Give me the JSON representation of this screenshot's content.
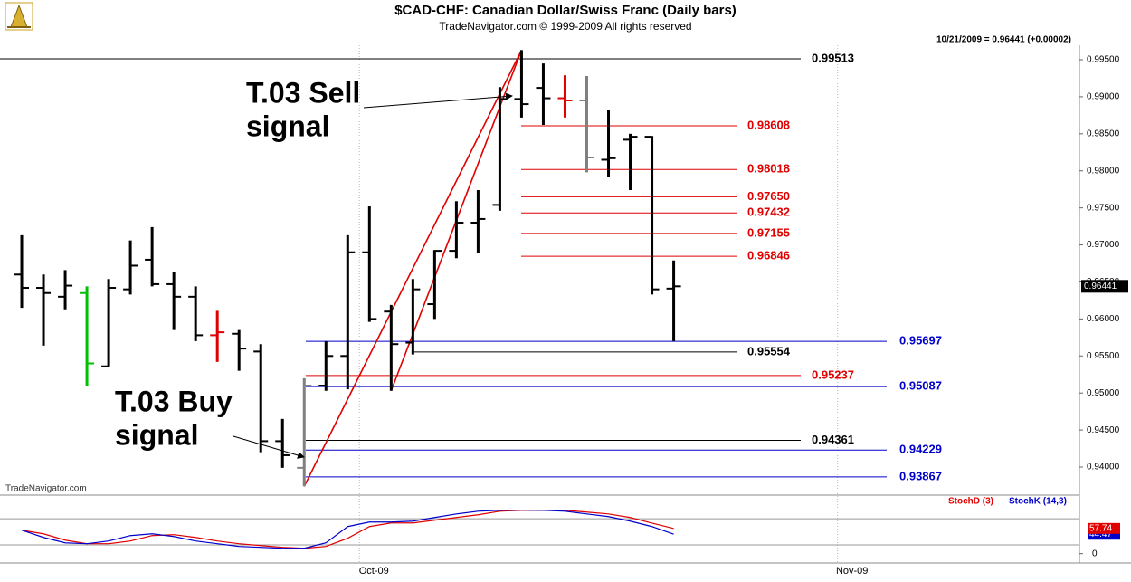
{
  "chart_data": [
    {
      "type": "ohlc",
      "title": "$CAD-CHF:  Canadian Dollar/Swiss Franc  (Daily bars)",
      "subtitle": "TradeNavigator.com © 1999-2009 All rights reserved",
      "header_note": "10/21/2009 = 0.96441 (+0.00002)",
      "watermark": "TradeNavigator.com",
      "open": [
        0.966,
        0.9642,
        0.963,
        0.9635,
        0.9536,
        0.964,
        0.968,
        0.9647,
        0.963,
        0.9578,
        0.958,
        0.9556,
        0.9435,
        0.9399,
        0.951,
        0.955,
        0.969,
        0.961,
        0.9568,
        0.962,
        0.9692,
        0.973,
        0.9754,
        0.9897,
        0.9912,
        0.9898,
        0.9895,
        0.9815,
        0.9842,
        0.9846,
        0.9641
      ],
      "high": [
        0.9713,
        0.966,
        0.9666,
        0.9644,
        0.9654,
        0.9706,
        0.9724,
        0.9664,
        0.9644,
        0.9611,
        0.9585,
        0.9566,
        0.9465,
        0.952,
        0.957,
        0.9713,
        0.9752,
        0.9619,
        0.9654,
        0.9693,
        0.9759,
        0.9774,
        0.9913,
        0.9963,
        0.9945,
        0.9929,
        0.9928,
        0.9882,
        0.985,
        0.9847,
        0.9679
      ],
      "low": [
        0.9615,
        0.9564,
        0.9613,
        0.951,
        0.9536,
        0.9633,
        0.9644,
        0.9585,
        0.957,
        0.9542,
        0.953,
        0.942,
        0.9399,
        0.9374,
        0.9503,
        0.9505,
        0.9596,
        0.9503,
        0.9552,
        0.96,
        0.9682,
        0.9689,
        0.9746,
        0.9872,
        0.9862,
        0.9872,
        0.9798,
        0.9792,
        0.9774,
        0.9633,
        0.957
      ],
      "close": [
        0.9642,
        0.9635,
        0.9645,
        0.954,
        0.9642,
        0.9672,
        0.9647,
        0.963,
        0.9578,
        0.9582,
        0.956,
        0.9435,
        0.9416,
        0.951,
        0.955,
        0.969,
        0.96,
        0.9566,
        0.964,
        0.9692,
        0.973,
        0.9735,
        0.9897,
        0.989,
        0.9898,
        0.9895,
        0.9818,
        0.9817,
        0.9846,
        0.964,
        0.96441
      ],
      "colors": [
        "#000000",
        "#000000",
        "#000000",
        "#00c000",
        "#000000",
        "#000000",
        "#000000",
        "#000000",
        "#000000",
        "#e00000",
        "#000000",
        "#000000",
        "#000000",
        "#808080",
        "#000000",
        "#000000",
        "#000000",
        "#000000",
        "#000000",
        "#000000",
        "#000000",
        "#000000",
        "#000000",
        "#000000",
        "#000000",
        "#e00000",
        "#808080",
        "#000000",
        "#000000",
        "#000000",
        "#000000"
      ],
      "ylim": [
        0.93646,
        0.9972
      ],
      "yticks": [
        {
          "value": 0.94,
          "label": "0.94000"
        },
        {
          "value": 0.945,
          "label": "0.94500"
        },
        {
          "value": 0.95,
          "label": "0.95000"
        },
        {
          "value": 0.955,
          "label": "0.95500"
        },
        {
          "value": 0.96,
          "label": "0.96000"
        },
        {
          "value": 0.965,
          "label": "0.96500"
        },
        {
          "value": 0.97,
          "label": "0.97000"
        },
        {
          "value": 0.975,
          "label": "0.97500"
        },
        {
          "value": 0.98,
          "label": "0.98000"
        },
        {
          "value": 0.985,
          "label": "0.98500"
        },
        {
          "value": 0.99,
          "label": "0.99000"
        },
        {
          "value": 0.995,
          "label": "0.99500"
        }
      ],
      "xlim": [
        -1,
        48.67
      ],
      "xticks": [
        {
          "value": 15.54,
          "label": "Oct-09"
        },
        {
          "value": 37.54,
          "label": "Nov-09"
        }
      ],
      "grid": true,
      "levels": [
        {
          "value": 0.99513,
          "color": "#000000"
        },
        {
          "value": 0.98608,
          "color": "#e00000"
        },
        {
          "value": 0.98018,
          "color": "#e00000"
        },
        {
          "value": 0.9765,
          "label": "0.97650",
          "color": "#e00000"
        },
        {
          "value": 0.97432,
          "color": "#e00000"
        },
        {
          "value": 0.97155,
          "color": "#e00000"
        },
        {
          "value": 0.96846,
          "color": "#e00000"
        },
        {
          "value": 0.95697,
          "color": "#0000cc"
        },
        {
          "value": 0.95554,
          "color": "#000000"
        },
        {
          "value": 0.95237,
          "color": "#e00000"
        },
        {
          "value": 0.95087,
          "color": "#0000cc"
        },
        {
          "value": 0.94361,
          "color": "#000000"
        },
        {
          "value": 0.94229,
          "color": "#0000cc"
        },
        {
          "value": 0.93867,
          "color": "#0000cc"
        }
      ],
      "trend_color": "#e00000",
      "annotations": [
        {
          "lines": [
            "T.03 Sell",
            "signal"
          ]
        },
        {
          "lines": [
            "T.03 Buy",
            "signal"
          ]
        }
      ]
    },
    {
      "type": "line",
      "series": [
        {
          "name": "StochD (3)",
          "color": "#e00000",
          "values": [
            53.8,
            45.5,
            31.0,
            22.8,
            22.8,
            29.0,
            41.4,
            43.5,
            37.2,
            29.0,
            22.8,
            18.6,
            14.5,
            12.4,
            16.6,
            35.2,
            62.1,
            70.3,
            70.3,
            76.6,
            82.8,
            89.0,
            97.2,
            99.3,
            99.3,
            99.3,
            95.2,
            91.0,
            82.8,
            70.0,
            57.74
          ]
        },
        {
          "name": "StochK (14,3)",
          "color": "#0000cc",
          "values": [
            53.8,
            37.2,
            24.8,
            22.8,
            29.0,
            41.4,
            45.5,
            39.3,
            29.0,
            22.8,
            16.6,
            14.5,
            12.4,
            12.4,
            24.8,
            62.1,
            72.4,
            72.4,
            74.5,
            82.8,
            91.0,
            97.2,
            99.3,
            99.8,
            99.3,
            97.2,
            91.0,
            84.8,
            74.5,
            62.1,
            44.47
          ]
        }
      ],
      "ylim": [
        -40,
        132
      ],
      "yticks": [
        0
      ],
      "guide_lines": [
        20,
        80
      ]
    }
  ]
}
